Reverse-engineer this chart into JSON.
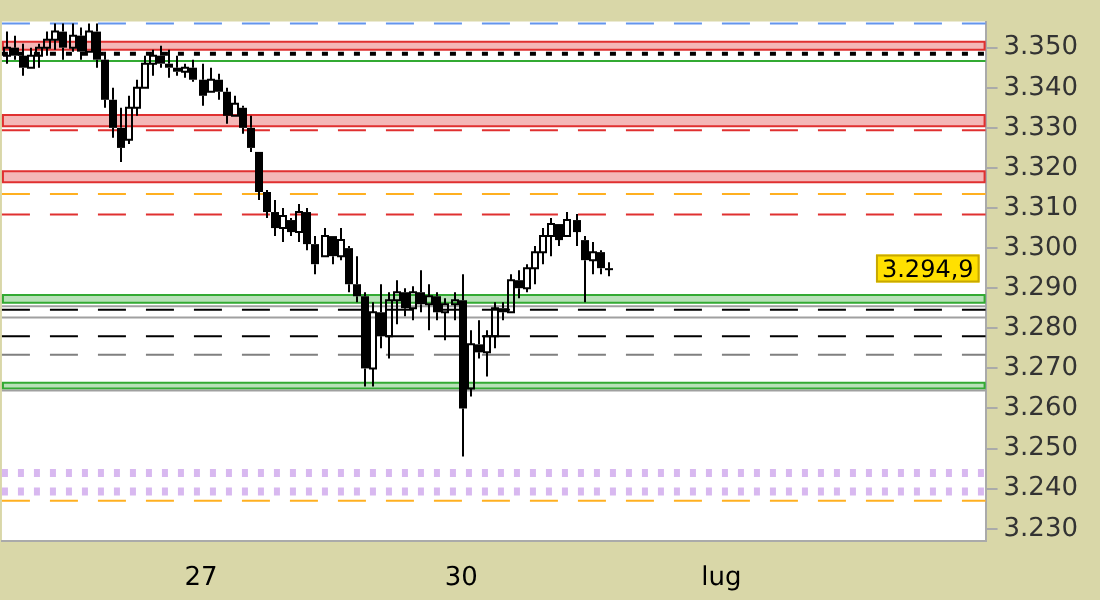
{
  "chart_data": {
    "type": "candlestick",
    "categories": [
      null,
      null,
      null,
      null,
      null,
      null,
      null,
      null,
      null,
      null,
      null,
      null,
      null,
      null,
      null,
      null,
      null,
      null,
      null,
      null,
      null,
      null,
      null,
      null,
      "27",
      null,
      null,
      null,
      null,
      null,
      null,
      null,
      null,
      null,
      null,
      null,
      null,
      null,
      null,
      null,
      null,
      null,
      null,
      null,
      null,
      null,
      null,
      null,
      null,
      null,
      null,
      null,
      null,
      null,
      null,
      null,
      "30",
      null,
      null,
      null,
      null,
      null,
      null,
      null,
      null,
      null,
      null,
      null,
      null,
      null,
      null,
      null,
      null,
      null,
      null,
      null,
      null,
      null,
      null,
      null,
      null,
      null,
      null,
      null,
      null,
      null,
      null,
      null,
      "lug",
      null,
      null,
      null,
      null,
      null,
      null,
      null,
      null,
      null,
      null,
      null,
      null,
      null,
      null,
      null,
      null,
      null,
      null,
      null,
      null,
      null,
      null,
      null,
      null,
      null,
      null,
      null,
      null,
      null,
      null,
      null,
      null
    ],
    "color": "#000000",
    "ohlc": [
      [
        3348,
        3354,
        3346,
        3350
      ],
      [
        3350,
        3353,
        3347,
        3348
      ],
      [
        3348,
        3351,
        3343,
        3345
      ],
      [
        3345,
        3350,
        3345,
        3348
      ],
      [
        3348,
        3351,
        3345,
        3350
      ],
      [
        3350,
        3354,
        3348,
        3352
      ],
      [
        3352,
        3356,
        3349.5,
        3354
      ],
      [
        3354,
        3356,
        3347,
        3350
      ],
      [
        3350,
        3356,
        3349,
        3353
      ],
      [
        3353,
        3355,
        3347,
        3349
      ],
      [
        3349,
        3356,
        3349,
        3354
      ],
      [
        3354,
        3356,
        3345,
        3347
      ],
      [
        3347,
        3349,
        3335,
        3337
      ],
      [
        3337,
        3340,
        3327.5,
        3330
      ],
      [
        3330,
        3335,
        3321.5,
        3325
      ],
      [
        3327,
        3338,
        3326,
        3335
      ],
      [
        3335,
        3342,
        3333,
        3340
      ],
      [
        3340,
        3348,
        3340,
        3346
      ],
      [
        3346,
        3349.5,
        3343,
        3348
      ],
      [
        3348,
        3350.5,
        3345,
        3346
      ],
      [
        3346,
        3349.5,
        3342.5,
        3345
      ],
      [
        3345,
        3348,
        3343,
        3344
      ],
      [
        3344,
        3346,
        3342.5,
        3345
      ],
      [
        3345,
        3347,
        3341.5,
        3342
      ],
      [
        3342,
        3346,
        3335.5,
        3338
      ],
      [
        3339,
        3345,
        3339,
        3342
      ],
      [
        3342,
        3343.5,
        3337,
        3339
      ],
      [
        3339,
        3340,
        3331,
        3333
      ],
      [
        3333,
        3338,
        3333,
        3336
      ],
      [
        3335,
        3335.5,
        3328.5,
        3330
      ],
      [
        3330,
        3333,
        3324,
        3325
      ],
      [
        3324,
        3324,
        3312,
        3314
      ],
      [
        3314,
        3314.5,
        3307.5,
        3309
      ],
      [
        3309,
        3312,
        3303,
        3305
      ],
      [
        3305,
        3310,
        3301.5,
        3308
      ],
      [
        3307,
        3307.5,
        3303,
        3304
      ],
      [
        3304,
        3311,
        3301.5,
        3309
      ],
      [
        3309,
        3310,
        3299.5,
        3301
      ],
      [
        3301,
        3303,
        3293.5,
        3296
      ],
      [
        3298,
        3305,
        3298,
        3303
      ],
      [
        3303,
        3303,
        3296,
        3298
      ],
      [
        3298,
        3305,
        3297,
        3302
      ],
      [
        3300,
        3300.5,
        3289,
        3291
      ],
      [
        3291,
        3298,
        3286.5,
        3288
      ],
      [
        3288,
        3289,
        3265.5,
        3270
      ],
      [
        3270,
        3286.5,
        3265.5,
        3284
      ],
      [
        3284,
        3291,
        3275,
        3278
      ],
      [
        3278,
        3289,
        3272.5,
        3287
      ],
      [
        3287,
        3292,
        3281,
        3289
      ],
      [
        3289,
        3290,
        3283,
        3285
      ],
      [
        3285,
        3290.5,
        3282,
        3289
      ],
      [
        3289,
        3294.5,
        3284,
        3286
      ],
      [
        3286,
        3291,
        3279.5,
        3288
      ],
      [
        3288,
        3289,
        3282,
        3284
      ],
      [
        3284,
        3287.5,
        3277,
        3286
      ],
      [
        3286,
        3289,
        3282,
        3287
      ],
      [
        3287,
        3293.5,
        3248,
        3260
      ],
      [
        3265,
        3279.5,
        3263,
        3276
      ],
      [
        3276,
        3282,
        3272.5,
        3274
      ],
      [
        3274,
        3279.5,
        3268,
        3278
      ],
      [
        3278,
        3286.5,
        3275,
        3285
      ],
      [
        3285,
        3286.5,
        3282,
        3284
      ],
      [
        3284,
        3293.5,
        3284,
        3292
      ],
      [
        3292,
        3294.5,
        3287.5,
        3290
      ],
      [
        3290,
        3296,
        3289,
        3295
      ],
      [
        3295,
        3300.5,
        3291,
        3299
      ],
      [
        3299,
        3305,
        3296,
        3303
      ],
      [
        3303,
        3307.5,
        3298,
        3306
      ],
      [
        3306,
        3306,
        3300.5,
        3302
      ],
      [
        3303,
        3309,
        3303,
        3307
      ],
      [
        3307,
        3308.5,
        3300.5,
        3304
      ],
      [
        3302,
        3303,
        3286.5,
        3297
      ],
      [
        3297,
        3301.5,
        3293.5,
        3299
      ],
      [
        3299,
        3299.5,
        3293.5,
        3295
      ],
      [
        3295,
        3296.5,
        3293,
        3294.9
      ],
      null,
      null,
      null,
      null,
      null,
      null,
      null,
      null,
      null,
      null,
      null,
      null,
      null,
      null,
      null,
      null,
      null,
      null,
      null,
      null,
      null,
      null,
      null,
      null,
      null,
      null,
      null,
      null,
      null,
      null,
      null,
      null,
      null,
      null,
      null,
      null,
      null,
      null,
      null,
      null,
      null,
      null,
      null,
      null,
      null,
      null
    ],
    "ylim": [
      3227,
      3356.5
    ],
    "yticks": [
      {
        "value": 3350,
        "label": "3.350"
      },
      {
        "value": 3340,
        "label": "3.340"
      },
      {
        "value": 3330,
        "label": "3.330"
      },
      {
        "value": 3320,
        "label": "3.320"
      },
      {
        "value": 3310,
        "label": "3.310"
      },
      {
        "value": 3300,
        "label": "3.300"
      },
      {
        "value": 3290,
        "label": "3.290"
      },
      {
        "value": 3280,
        "label": "3.280"
      },
      {
        "value": 3270,
        "label": "3.270"
      },
      {
        "value": 3260,
        "label": "3.260"
      },
      {
        "value": 3250,
        "label": "3.250"
      },
      {
        "value": 3240,
        "label": "3.240"
      },
      {
        "value": 3230,
        "label": "3.230"
      }
    ],
    "ref_lines": [
      {
        "axis": "y",
        "value": 3356,
        "color": "#6495ed",
        "line_style": "dashed"
      },
      {
        "axis": "y",
        "value": 3348.5,
        "color": "#000000",
        "line_style": "dotted"
      },
      {
        "axis": "y",
        "value": 3346.7,
        "color": "#33aa33",
        "line_style": "solid"
      },
      {
        "axis": "y",
        "value": 3329.4,
        "color": "#e03030",
        "line_style": "dashed"
      },
      {
        "axis": "y",
        "value": 3313.5,
        "color": "#ffb020",
        "line_style": "dashed"
      },
      {
        "axis": "y",
        "value": 3308.4,
        "color": "#e03030",
        "line_style": "dashed"
      },
      {
        "axis": "y",
        "value": 3285.5,
        "color": "#a0a0a0",
        "line_style": "solid"
      },
      {
        "axis": "y",
        "value": 3284.6,
        "color": "#000000",
        "line_style": "dashed"
      },
      {
        "axis": "y",
        "value": 3282.7,
        "color": "#a0a0a0",
        "line_style": "solid"
      },
      {
        "axis": "y",
        "value": 3278,
        "color": "#000000",
        "line_style": "dashed"
      },
      {
        "axis": "y",
        "value": 3273.4,
        "color": "#808080",
        "line_style": "dashed"
      },
      {
        "axis": "y",
        "value": 3264.5,
        "color": "#a0a0a0",
        "line_style": "solid"
      },
      {
        "axis": "y",
        "value": 3243.9,
        "color": "#d8b8f0",
        "line_style": "dotted"
      },
      {
        "axis": "y",
        "value": 3239.3,
        "color": "#d8b8f0",
        "line_style": "dotted"
      },
      {
        "axis": "y",
        "value": 3237,
        "color": "#ffb020",
        "line_style": "dashed"
      }
    ],
    "bands": [
      {
        "axis": "y",
        "from": 3349.5,
        "to": 3351.5,
        "color": "#e03030"
      },
      {
        "axis": "y",
        "from": 3330.4,
        "to": 3333.2,
        "color": "#e03030"
      },
      {
        "axis": "y",
        "from": 3316.4,
        "to": 3319.2,
        "color": "#e03030"
      },
      {
        "axis": "y",
        "from": 3286.4,
        "to": 3288.3,
        "color": "#33aa33"
      },
      {
        "axis": "y",
        "from": 3265,
        "to": 3266.4,
        "color": "#33aa33"
      }
    ],
    "annotations": [
      "3.294,9"
    ]
  }
}
